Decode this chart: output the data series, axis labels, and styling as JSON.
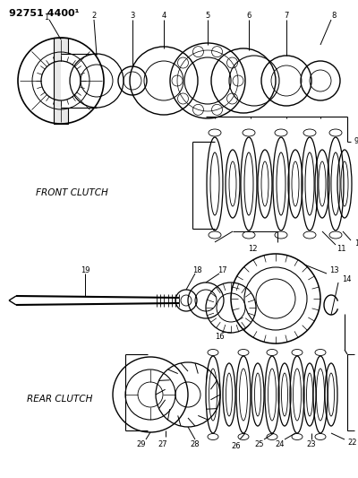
{
  "title": "92751 4400¹",
  "front_clutch_label": "FRONT CLUTCH",
  "rear_clutch_label": "REAR CLUTCH",
  "bg_color": "#ffffff",
  "line_color": "#000000",
  "text_color": "#000000",
  "fig_width": 4.0,
  "fig_height": 5.33,
  "dpi": 100
}
